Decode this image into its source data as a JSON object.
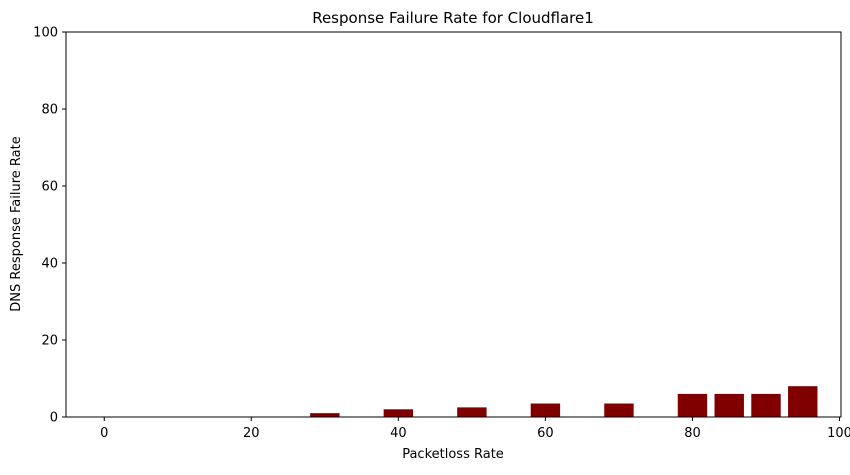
{
  "chart_data": {
    "type": "bar",
    "title": "Response Failure Rate for Cloudflare1",
    "xlabel": "Packetloss Rate",
    "ylabel": "DNS Response Failure Rate",
    "x": [
      0,
      10,
      20,
      30,
      40,
      50,
      60,
      70,
      80,
      85,
      90,
      95
    ],
    "values": [
      0,
      0,
      0,
      1,
      2,
      2.5,
      3.5,
      3.5,
      6,
      6,
      6,
      8
    ],
    "bar_color": "#800000",
    "xlim": [
      -5.2,
      100.2
    ],
    "ylim": [
      0,
      100
    ],
    "xticks": [
      0,
      20,
      40,
      60,
      80,
      100
    ],
    "yticks": [
      0,
      20,
      40,
      60,
      80,
      100
    ],
    "grid": false,
    "legend": "none"
  }
}
